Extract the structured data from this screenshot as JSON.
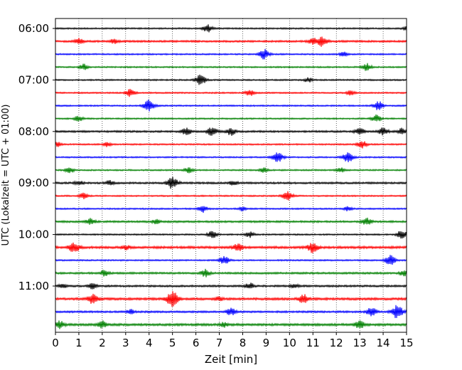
{
  "chart_data": {
    "type": "line",
    "title": "",
    "xlabel": "Zeit  [min]",
    "ylabel": "UTC (Lokalzeit = UTC + 01:00)",
    "xlim": [
      0,
      15
    ],
    "xticks": [
      "0",
      "1",
      "2",
      "3",
      "4",
      "5",
      "6",
      "7",
      "8",
      "9",
      "10",
      "11",
      "12",
      "13",
      "14",
      "15"
    ],
    "grid": "vertical dotted",
    "start_time": "06:00",
    "trace_interval_min": 15,
    "ytick_labels": [
      "06:00",
      "07:00",
      "08:00",
      "09:00",
      "10:00",
      "11:00"
    ],
    "color_cycle": [
      "#000000",
      "#ff0000",
      "#0000ff",
      "#008000"
    ],
    "traces": [
      {
        "start": "06:00",
        "color": "#000000",
        "noise": 1.0,
        "events": [
          [
            6.5,
            5
          ],
          [
            15.0,
            3
          ]
        ]
      },
      {
        "start": "06:15",
        "color": "#ff0000",
        "noise": 1.3,
        "events": [
          [
            1.0,
            4
          ],
          [
            2.5,
            3
          ],
          [
            11.4,
            7
          ],
          [
            11.0,
            4
          ]
        ]
      },
      {
        "start": "06:30",
        "color": "#0000ff",
        "noise": 1.0,
        "events": [
          [
            8.9,
            7
          ],
          [
            12.3,
            3
          ]
        ]
      },
      {
        "start": "06:45",
        "color": "#008000",
        "noise": 1.0,
        "events": [
          [
            1.2,
            4
          ],
          [
            13.3,
            5
          ]
        ]
      },
      {
        "start": "07:00",
        "color": "#000000",
        "noise": 1.0,
        "events": [
          [
            6.2,
            7
          ],
          [
            10.8,
            3
          ]
        ]
      },
      {
        "start": "07:15",
        "color": "#ff0000",
        "noise": 1.0,
        "events": [
          [
            3.2,
            5
          ],
          [
            8.3,
            4
          ],
          [
            12.6,
            3
          ]
        ]
      },
      {
        "start": "07:30",
        "color": "#0000ff",
        "noise": 1.0,
        "events": [
          [
            4.0,
            8
          ],
          [
            13.8,
            6
          ]
        ]
      },
      {
        "start": "07:45",
        "color": "#008000",
        "noise": 1.0,
        "events": [
          [
            1.0,
            4
          ],
          [
            13.7,
            5
          ]
        ]
      },
      {
        "start": "08:00",
        "color": "#000000",
        "noise": 1.3,
        "events": [
          [
            5.6,
            5
          ],
          [
            6.7,
            6
          ],
          [
            7.5,
            5
          ],
          [
            13.0,
            5
          ],
          [
            14.0,
            5
          ],
          [
            14.8,
            4
          ]
        ]
      },
      {
        "start": "08:15",
        "color": "#ff0000",
        "noise": 1.0,
        "events": [
          [
            0.1,
            3
          ],
          [
            2.2,
            3
          ],
          [
            13.1,
            5
          ]
        ]
      },
      {
        "start": "08:30",
        "color": "#0000ff",
        "noise": 1.0,
        "events": [
          [
            9.5,
            7
          ],
          [
            12.5,
            7
          ]
        ]
      },
      {
        "start": "08:45",
        "color": "#008000",
        "noise": 1.0,
        "events": [
          [
            0.6,
            4
          ],
          [
            5.7,
            4
          ],
          [
            8.9,
            3
          ],
          [
            12.2,
            3
          ]
        ]
      },
      {
        "start": "09:00",
        "color": "#000000",
        "noise": 1.3,
        "events": [
          [
            1.0,
            3
          ],
          [
            2.3,
            3
          ],
          [
            5.0,
            8
          ],
          [
            7.6,
            3
          ]
        ]
      },
      {
        "start": "09:15",
        "color": "#ff0000",
        "noise": 1.0,
        "events": [
          [
            1.2,
            4
          ],
          [
            9.9,
            7
          ]
        ]
      },
      {
        "start": "09:30",
        "color": "#0000ff",
        "noise": 1.0,
        "events": [
          [
            6.3,
            5
          ],
          [
            8.0,
            3
          ],
          [
            12.5,
            3
          ]
        ]
      },
      {
        "start": "09:45",
        "color": "#008000",
        "noise": 1.3,
        "events": [
          [
            1.5,
            4
          ],
          [
            4.3,
            3
          ],
          [
            13.3,
            5
          ]
        ]
      },
      {
        "start": "10:00",
        "color": "#000000",
        "noise": 1.0,
        "events": [
          [
            6.7,
            5
          ],
          [
            8.3,
            4
          ],
          [
            14.8,
            6
          ]
        ]
      },
      {
        "start": "10:15",
        "color": "#ff0000",
        "noise": 1.6,
        "events": [
          [
            0.8,
            7
          ],
          [
            3.0,
            3
          ],
          [
            7.8,
            5
          ],
          [
            11.0,
            7
          ]
        ]
      },
      {
        "start": "10:30",
        "color": "#0000ff",
        "noise": 1.0,
        "events": [
          [
            7.2,
            6
          ],
          [
            14.3,
            7
          ]
        ]
      },
      {
        "start": "10:45",
        "color": "#008000",
        "noise": 1.3,
        "events": [
          [
            2.1,
            4
          ],
          [
            6.4,
            5
          ],
          [
            14.9,
            4
          ]
        ]
      },
      {
        "start": "11:00",
        "color": "#000000",
        "noise": 1.3,
        "events": [
          [
            0.3,
            3
          ],
          [
            1.6,
            4
          ],
          [
            8.3,
            4
          ],
          [
            10.2,
            3
          ]
        ]
      },
      {
        "start": "11:15",
        "color": "#ff0000",
        "noise": 1.6,
        "events": [
          [
            1.6,
            7
          ],
          [
            5.0,
            10
          ],
          [
            10.6,
            6
          ],
          [
            7.0,
            3
          ]
        ]
      },
      {
        "start": "11:30",
        "color": "#0000ff",
        "noise": 1.3,
        "events": [
          [
            7.5,
            5
          ],
          [
            13.5,
            6
          ],
          [
            14.6,
            9
          ],
          [
            3.2,
            3
          ]
        ]
      },
      {
        "start": "11:45",
        "color": "#008000",
        "noise": 1.6,
        "events": [
          [
            0.2,
            5
          ],
          [
            2.0,
            5
          ],
          [
            13.0,
            5
          ],
          [
            7.2,
            3
          ]
        ]
      }
    ]
  }
}
